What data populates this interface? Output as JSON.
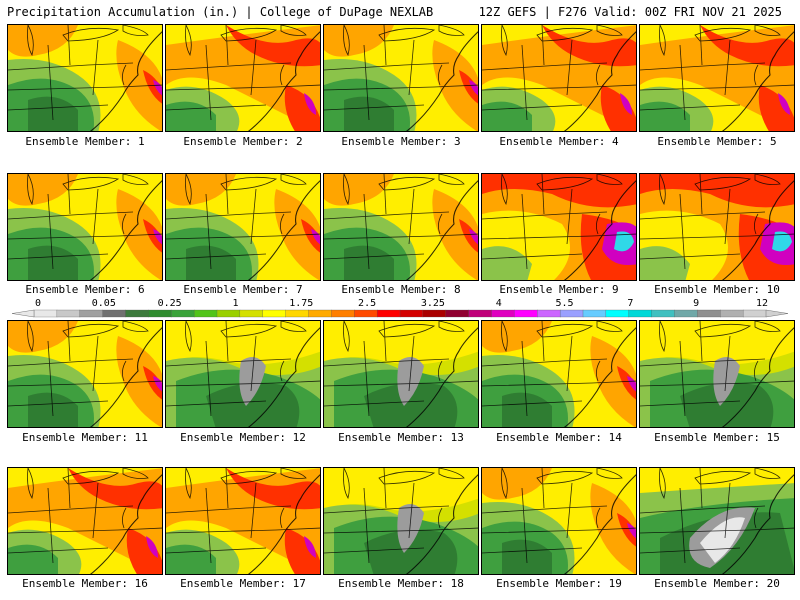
{
  "header": {
    "left": "Precipitation Accumulation (in.) | College of DuPage NEXLAB",
    "right": "12Z GEFS | F276 Valid: 00Z FRI NOV 21 2025"
  },
  "colorbar": {
    "labels": [
      "0",
      "0.05",
      "0.25",
      "1",
      "1.75",
      "2.5",
      "3.25",
      "4",
      "5.5",
      "7",
      "9",
      "12"
    ],
    "colors": [
      "#e8e8e8",
      "#c8c8c8",
      "#a0a0a0",
      "#707070",
      "#3c7a3c",
      "#2f8c2f",
      "#3aa33a",
      "#52c41a",
      "#9ad000",
      "#d4e000",
      "#ffff00",
      "#ffd700",
      "#ffaa00",
      "#ff7f00",
      "#ff4a00",
      "#ff0000",
      "#d40000",
      "#aa0000",
      "#900030",
      "#c0007a",
      "#e000c0",
      "#ff00ff",
      "#cc66ff",
      "#9aa0ff",
      "#66ccff",
      "#00ffff",
      "#00d8d8",
      "#40c0c0",
      "#70a8a8",
      "#909090",
      "#b0b0b0",
      "#d0d0d0"
    ]
  },
  "palette": {
    "dkgreen": "#2f7d32",
    "green": "#3f9f3f",
    "ltgreen": "#8bc34a",
    "yellowgreen": "#c8dc10",
    "yellow": "#ffee00",
    "orange": "#ffa500",
    "red": "#ff3000",
    "magenta": "#d000c0",
    "cyan": "#30d8e8",
    "gray": "#9c9c9c",
    "white": "#e8e8e8"
  },
  "members": [
    {
      "label": "Ensemble Member: 1",
      "style": "mixed"
    },
    {
      "label": "Ensemble Member: 2",
      "style": "wet"
    },
    {
      "label": "Ensemble Member: 3",
      "style": "mixed"
    },
    {
      "label": "Ensemble Member: 4",
      "style": "wet"
    },
    {
      "label": "Ensemble Member: 5",
      "style": "wet"
    },
    {
      "label": "Ensemble Member: 6",
      "style": "mixed"
    },
    {
      "label": "Ensemble Member: 7",
      "style": "mixed"
    },
    {
      "label": "Ensemble Member: 8",
      "style": "mixed"
    },
    {
      "label": "Ensemble Member: 9",
      "style": "verywet"
    },
    {
      "label": "Ensemble Member: 10",
      "style": "verywet"
    },
    {
      "label": "Ensemble Member: 11",
      "style": "mixed"
    },
    {
      "label": "Ensemble Member: 12",
      "style": "dry"
    },
    {
      "label": "Ensemble Member: 13",
      "style": "dry"
    },
    {
      "label": "Ensemble Member: 14",
      "style": "mixed"
    },
    {
      "label": "Ensemble Member: 15",
      "style": "dry"
    },
    {
      "label": "Ensemble Member: 16",
      "style": "wet"
    },
    {
      "label": "Ensemble Member: 17",
      "style": "wet"
    },
    {
      "label": "Ensemble Member: 18",
      "style": "dry"
    },
    {
      "label": "Ensemble Member: 19",
      "style": "mixed"
    },
    {
      "label": "Ensemble Member: 20",
      "style": "verydry"
    }
  ]
}
